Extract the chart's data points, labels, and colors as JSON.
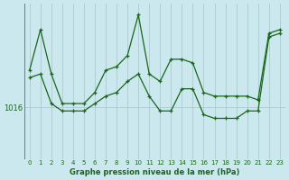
{
  "background_color": "#cce8ef",
  "grid_color": "#aacccc",
  "line_color": "#1a6618",
  "xlabel": "Graphe pression niveau de la mer (hPa)",
  "xlim": [
    -0.5,
    23.5
  ],
  "ylim": [
    1009,
    1030
  ],
  "ytick_value": 1016,
  "xticks": [
    0,
    1,
    2,
    3,
    4,
    5,
    6,
    7,
    8,
    9,
    10,
    11,
    12,
    13,
    14,
    15,
    16,
    17,
    18,
    19,
    20,
    21,
    22,
    23
  ],
  "series1_x": [
    0,
    1,
    2,
    3,
    4,
    5,
    6,
    7,
    8,
    9,
    10,
    11,
    12,
    13,
    14,
    15,
    16,
    17,
    18,
    19,
    20,
    21,
    22,
    23
  ],
  "series1_y": [
    1021.0,
    1026.5,
    1020.5,
    1016.5,
    1016.5,
    1016.5,
    1018.0,
    1021.0,
    1021.5,
    1023.0,
    1028.5,
    1020.5,
    1019.5,
    1022.5,
    1022.5,
    1022.0,
    1018.0,
    1017.5,
    1017.5,
    1017.5,
    1017.5,
    1017.0,
    1026.0,
    1026.5
  ],
  "series2_x": [
    0,
    1,
    2,
    3,
    4,
    5,
    6,
    7,
    8,
    9,
    10,
    11,
    12,
    13,
    14,
    15,
    16,
    17,
    18,
    19,
    20,
    21,
    22,
    23
  ],
  "series2_y": [
    1020.0,
    1020.5,
    1016.5,
    1015.5,
    1015.5,
    1015.5,
    1016.5,
    1017.5,
    1018.0,
    1019.5,
    1020.5,
    1017.5,
    1015.5,
    1015.5,
    1018.5,
    1018.5,
    1015.0,
    1014.5,
    1014.5,
    1014.5,
    1015.5,
    1015.5,
    1025.5,
    1026.0
  ]
}
